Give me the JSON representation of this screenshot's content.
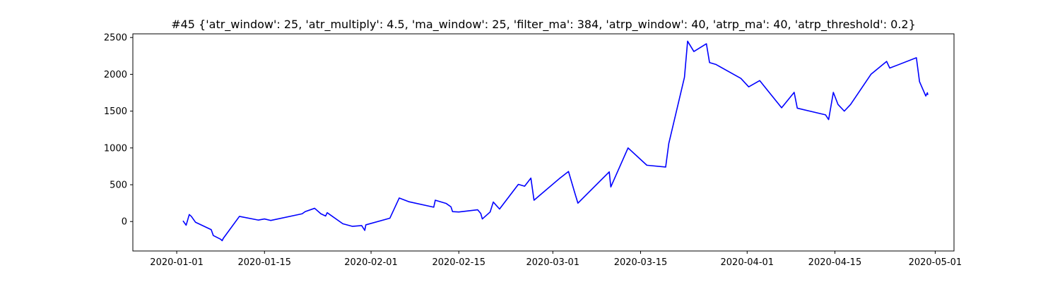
{
  "chart_data": {
    "type": "line",
    "title": "#45 {'atr_window': 25, 'atr_multiply': 4.5, 'ma_window': 25, 'filter_ma': 384, 'atrp_window': 40, 'atrp_ma': 40, 'atrp_threshold': 0.2}",
    "xlabel": "",
    "ylabel": "",
    "x_type": "date",
    "xlim": [
      "2019-12-25",
      "2020-05-04"
    ],
    "ylim": [
      -400,
      2550
    ],
    "x_ticks": [
      "2020-01-01",
      "2020-01-15",
      "2020-02-01",
      "2020-02-15",
      "2020-03-01",
      "2020-03-15",
      "2020-04-01",
      "2020-04-15",
      "2020-05-01"
    ],
    "y_ticks": [
      0,
      500,
      1000,
      1500,
      2000,
      2500
    ],
    "grid": false,
    "line_color": "#0000ff",
    "series": [
      {
        "points": [
          [
            "2020-01-02",
            10
          ],
          [
            "2020-01-02T12:00",
            -50
          ],
          [
            "2020-01-03",
            95
          ],
          [
            "2020-01-03T08:00",
            70
          ],
          [
            "2020-01-04",
            -10
          ],
          [
            "2020-01-06T12:00",
            -110
          ],
          [
            "2020-01-06T20:00",
            -190
          ],
          [
            "2020-01-08",
            -240
          ],
          [
            "2020-01-08T06:00",
            -260
          ],
          [
            "2020-01-08T10:00",
            -230
          ],
          [
            "2020-01-11",
            70
          ],
          [
            "2020-01-14",
            20
          ],
          [
            "2020-01-15",
            35
          ],
          [
            "2020-01-16",
            15
          ],
          [
            "2020-01-21",
            105
          ],
          [
            "2020-01-21T12:00",
            135
          ],
          [
            "2020-01-23",
            180
          ],
          [
            "2020-01-24",
            105
          ],
          [
            "2020-01-24T18:00",
            75
          ],
          [
            "2020-01-25",
            120
          ],
          [
            "2020-01-27T12:00",
            -30
          ],
          [
            "2020-01-29",
            -65
          ],
          [
            "2020-01-30T12:00",
            -55
          ],
          [
            "2020-01-31",
            -120
          ],
          [
            "2020-01-31T04:00",
            -45
          ],
          [
            "2020-02-04",
            45
          ],
          [
            "2020-02-05T12:00",
            320
          ],
          [
            "2020-02-07",
            270
          ],
          [
            "2020-02-11",
            195
          ],
          [
            "2020-02-11T06:00",
            290
          ],
          [
            "2020-02-13",
            245
          ],
          [
            "2020-02-13T18:00",
            200
          ],
          [
            "2020-02-14",
            135
          ],
          [
            "2020-02-15",
            130
          ],
          [
            "2020-02-18",
            160
          ],
          [
            "2020-02-18T12:00",
            110
          ],
          [
            "2020-02-18T18:00",
            35
          ],
          [
            "2020-02-20",
            130
          ],
          [
            "2020-02-20T12:00",
            265
          ],
          [
            "2020-02-21T12:00",
            170
          ],
          [
            "2020-02-24T12:00",
            505
          ],
          [
            "2020-02-25T12:00",
            480
          ],
          [
            "2020-02-26T12:00",
            590
          ],
          [
            "2020-02-27",
            290
          ],
          [
            "2020-03-02",
            580
          ],
          [
            "2020-03-03T12:00",
            680
          ],
          [
            "2020-03-04T12:00",
            390
          ],
          [
            "2020-03-05",
            250
          ],
          [
            "2020-03-10",
            675
          ],
          [
            "2020-03-10T06:00",
            470
          ],
          [
            "2020-03-13",
            1000
          ],
          [
            "2020-03-16",
            765
          ],
          [
            "2020-03-19",
            740
          ],
          [
            "2020-03-19T12:00",
            1060
          ],
          [
            "2020-03-22",
            1960
          ],
          [
            "2020-03-22T12:00",
            2450
          ],
          [
            "2020-03-23T12:00",
            2310
          ],
          [
            "2020-03-25T12:00",
            2415
          ],
          [
            "2020-03-26",
            2160
          ],
          [
            "2020-03-27",
            2135
          ],
          [
            "2020-03-31",
            1945
          ],
          [
            "2020-04-01T06:00",
            1830
          ],
          [
            "2020-04-03",
            1915
          ],
          [
            "2020-04-06T12:00",
            1545
          ],
          [
            "2020-04-08T12:00",
            1755
          ],
          [
            "2020-04-09",
            1540
          ],
          [
            "2020-04-13T12:00",
            1450
          ],
          [
            "2020-04-14",
            1385
          ],
          [
            "2020-04-14T18:00",
            1755
          ],
          [
            "2020-04-15T12:00",
            1590
          ],
          [
            "2020-04-16T12:00",
            1500
          ],
          [
            "2020-04-17T12:00",
            1590
          ],
          [
            "2020-04-20T18:00",
            2000
          ],
          [
            "2020-04-23T06:00",
            2175
          ],
          [
            "2020-04-23T18:00",
            2085
          ],
          [
            "2020-04-28",
            2225
          ],
          [
            "2020-04-28T12:00",
            1900
          ],
          [
            "2020-04-29T12:00",
            1705
          ],
          [
            "2020-04-29T18:00",
            1750
          ],
          [
            "2020-04-29T20:00",
            1720
          ]
        ]
      }
    ]
  }
}
